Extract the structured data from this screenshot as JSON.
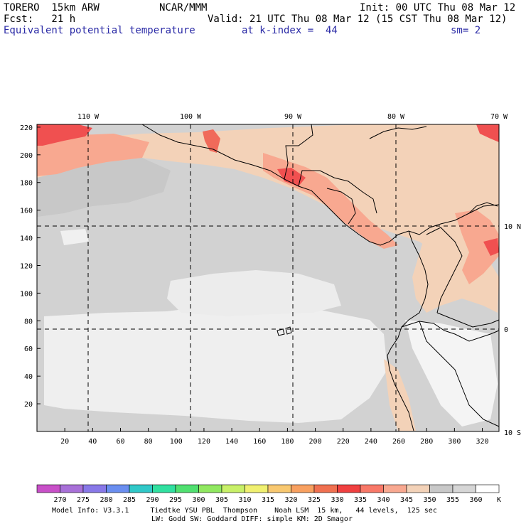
{
  "header": {
    "model": "TORERO  15km ARW",
    "center": "NCAR/MMM",
    "init": "Init: 00 UTC Thu 08 Mar 12",
    "fcst": "Fcst:   21 h",
    "valid": "Valid: 21 UTC Thu 08 Mar 12 (15 CST Thu 08 Mar 12)",
    "field": "Equivalent potential temperature",
    "level": "at k-index =  44",
    "smooth": "sm= 2"
  },
  "top_axis_labels": [
    "110 W",
    "100 W",
    "90 W",
    "80 W",
    "70 W"
  ],
  "right_axis_labels": [
    "10 N",
    "0",
    "10 S"
  ],
  "left_axis_ticks": [
    20,
    40,
    60,
    80,
    100,
    120,
    140,
    160,
    180,
    200,
    220
  ],
  "bottom_axis_ticks": [
    20,
    40,
    60,
    80,
    100,
    120,
    140,
    160,
    180,
    200,
    220,
    240,
    260,
    280,
    300,
    320
  ],
  "colorbar": {
    "labels": [
      "270",
      "275",
      "280",
      "285",
      "290",
      "295",
      "300",
      "305",
      "310",
      "315",
      "320",
      "325",
      "330",
      "335",
      "340",
      "345",
      "350",
      "355",
      "360"
    ],
    "unit": "K",
    "colors": [
      "#c850c8",
      "#a870d8",
      "#8878e8",
      "#6a8ef0",
      "#30c8c8",
      "#30e0a0",
      "#50e070",
      "#90e860",
      "#c8f068",
      "#f0f070",
      "#f8c870",
      "#f8a060",
      "#f07050",
      "#f04040",
      "#f87868",
      "#f8a890",
      "#f3d2b8",
      "#c8c8c8",
      "#d6d6d6",
      "#ffffff"
    ]
  },
  "footer": {
    "line1": "Model Info: V3.3.1     Tiedtke YSU PBL  Thompson    Noah LSM  15 km,   44 levels,  125 sec",
    "line2": "LW: Godd SW: Goddard DIFF: simple KM: 2D Smagor"
  }
}
